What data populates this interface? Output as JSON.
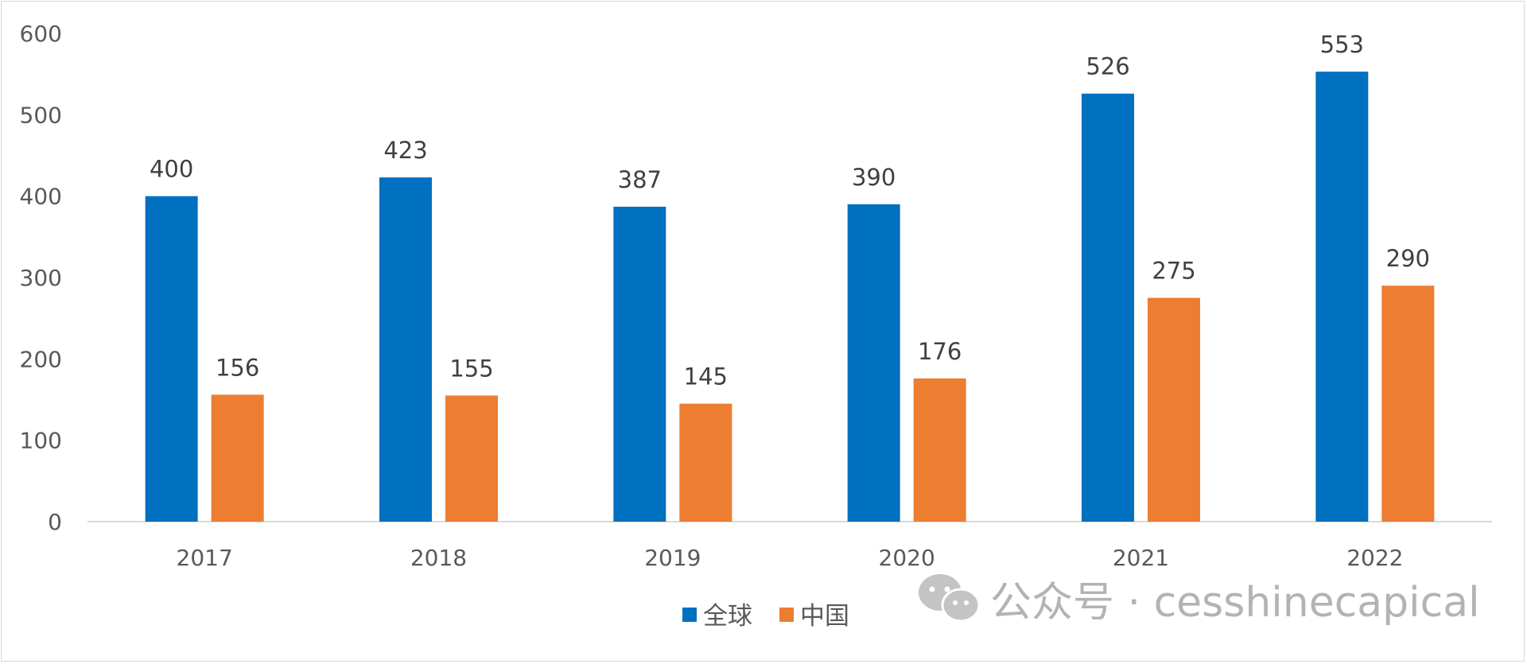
{
  "chart_data": {
    "type": "bar",
    "categories": [
      "2017",
      "2018",
      "2019",
      "2020",
      "2021",
      "2022"
    ],
    "series": [
      {
        "name": "全球",
        "color": "#0070C0",
        "values": [
          400,
          423,
          387,
          390,
          526,
          553
        ]
      },
      {
        "name": "中国",
        "color": "#ED7D31",
        "values": [
          156,
          155,
          145,
          176,
          275,
          290
        ]
      }
    ],
    "ylim": [
      0,
      600
    ],
    "yticks": [
      0,
      100,
      200,
      300,
      400,
      500,
      600
    ],
    "grid": false,
    "legend_position": "bottom"
  },
  "watermark": {
    "text": "公众号 · cesshinecapical",
    "icon": "wechat-icon"
  }
}
